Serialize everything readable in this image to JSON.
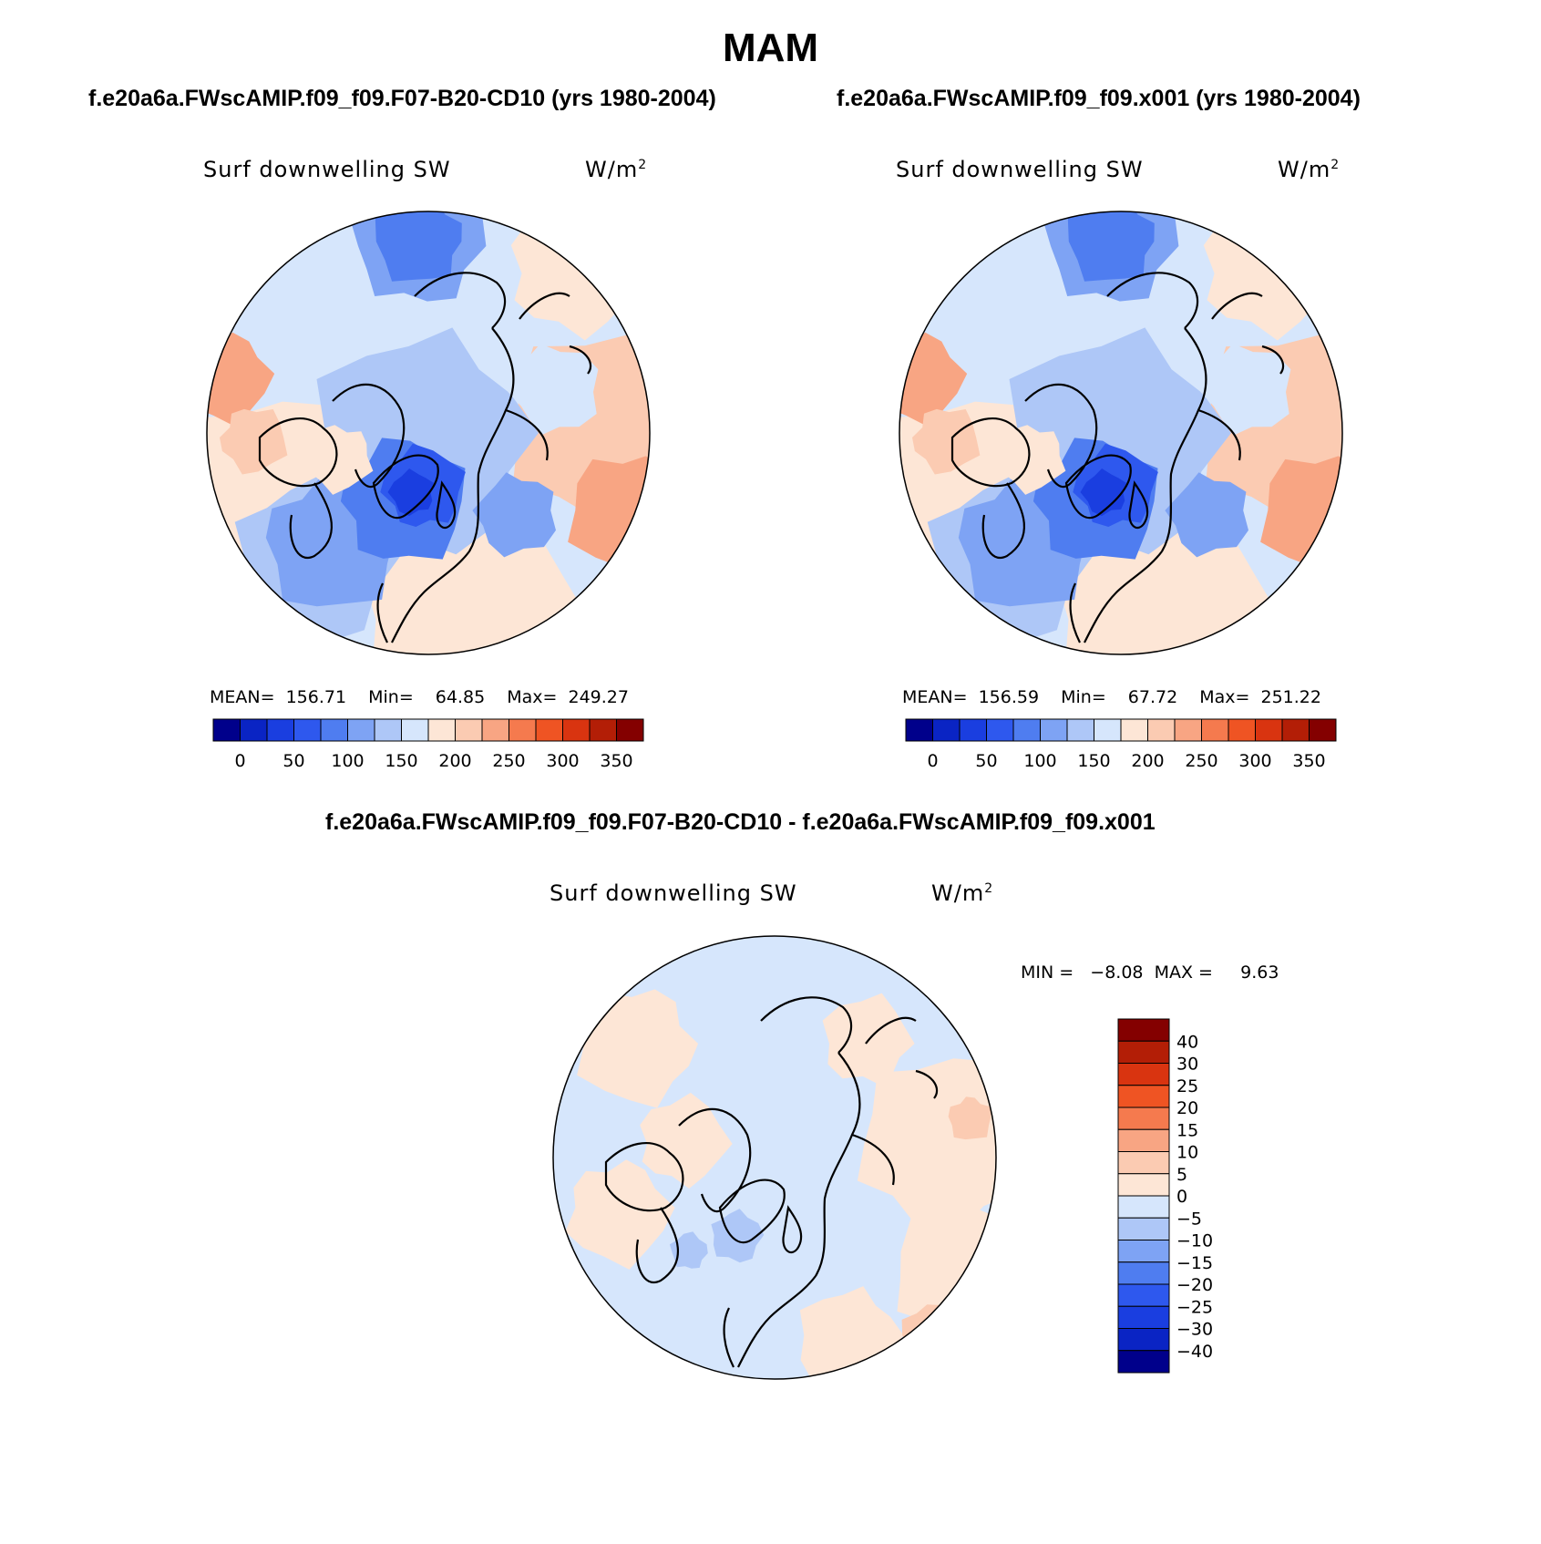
{
  "chart_data": {
    "type": "heatmap",
    "title": "MAM",
    "projection": "north polar stereographic",
    "panels": [
      {
        "id": "case",
        "title": "f.e20a6a.FWscAMIP.f09_f09.F07-B20-CD10 (yrs 1980-2004)",
        "variable": "Surf downwelling SW",
        "units_base": "W/m",
        "units_exp": "2",
        "mean_label": "MEAN=",
        "min_label": "Min=",
        "max_label": "Max=",
        "mean": "156.71",
        "min": "64.85",
        "max": "249.27",
        "levels": [
          0,
          25,
          50,
          75,
          100,
          125,
          150,
          175,
          200,
          225,
          250,
          275,
          300,
          325,
          350
        ],
        "tick_labels": [
          "0",
          "50",
          "100",
          "150",
          "200",
          "250",
          "300",
          "350"
        ]
      },
      {
        "id": "control",
        "title": "f.e20a6a.FWscAMIP.f09_f09.x001 (yrs 1980-2004)",
        "variable": "Surf downwelling SW",
        "units_base": "W/m",
        "units_exp": "2",
        "mean_label": "MEAN=",
        "min_label": "Min=",
        "max_label": "Max=",
        "mean": "156.59",
        "min": "67.72",
        "max": "251.22",
        "levels": [
          0,
          25,
          50,
          75,
          100,
          125,
          150,
          175,
          200,
          225,
          250,
          275,
          300,
          325,
          350
        ],
        "tick_labels": [
          "0",
          "50",
          "100",
          "150",
          "200",
          "250",
          "300",
          "350"
        ]
      },
      {
        "id": "difference",
        "title": "f.e20a6a.FWscAMIP.f09_f09.F07-B20-CD10 - f.e20a6a.FWscAMIP.f09_f09.x001",
        "variable": "Surf downwelling SW",
        "units_base": "W/m",
        "units_exp": "2",
        "minmax_text": "MIN =   −8.08  MAX =     9.63",
        "min": "-8.08",
        "max": "9.63",
        "levels": [
          40,
          30,
          25,
          20,
          15,
          10,
          5,
          0,
          -5,
          -10,
          -15,
          -20,
          -25,
          -30,
          -40
        ],
        "tick_labels": [
          "40",
          "30",
          "25",
          "20",
          "15",
          "10",
          "5",
          "0",
          "−5",
          "−10",
          "−15",
          "−20",
          "−25",
          "−30",
          "−40"
        ]
      }
    ],
    "colormap": [
      "#00008b",
      "#0a24c4",
      "#1a3ee0",
      "#2e58ee",
      "#4f7df0",
      "#7ea3f4",
      "#aec7f7",
      "#d6e6fc",
      "#fde6d6",
      "#fbcbb2",
      "#f8a583",
      "#f57a4e",
      "#ef5423",
      "#d93410",
      "#b31e06",
      "#840000"
    ]
  },
  "colors": {
    "background": "#ffffff",
    "coastline": "#000000"
  }
}
